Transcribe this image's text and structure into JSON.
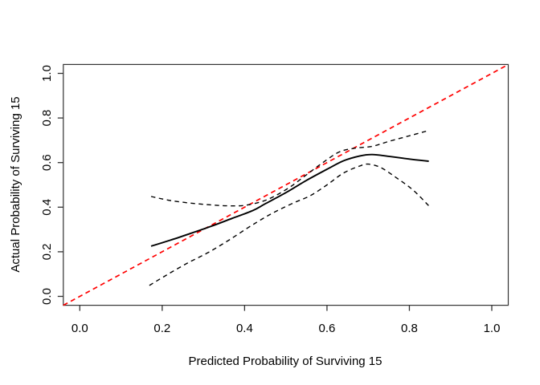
{
  "figure": {
    "background": "#ffffff",
    "frame_color": "#333333",
    "text_color": "#000000"
  },
  "chart_data": {
    "type": "line",
    "title": "",
    "xlabel": "Predicted Probability of Surviving 15",
    "ylabel": "Actual Probability of Surviving 15",
    "xlim": [
      -0.04,
      1.04
    ],
    "ylim": [
      -0.04,
      1.04
    ],
    "grid": false,
    "legend": "none",
    "x_ticks": [
      0,
      0.2,
      0.4,
      0.6,
      0.8,
      1
    ],
    "x_tick_labels": [
      "0.0",
      "0.2",
      "0.4",
      "0.6",
      "0.8",
      "1.0"
    ],
    "y_ticks": [
      0,
      0.2,
      0.4,
      0.6,
      0.8,
      1
    ],
    "y_tick_labels": [
      "0.0",
      "0.2",
      "0.4",
      "0.6",
      "0.8",
      "1.0"
    ],
    "series": [
      {
        "name": "ideal-line",
        "style": "dashed",
        "color": "#ff0000",
        "points": [
          [
            -0.04,
            -0.04
          ],
          [
            1.04,
            1.04
          ]
        ]
      },
      {
        "name": "calibration-curve",
        "style": "solid",
        "color": "#000000",
        "points": [
          [
            0.173,
            0.225
          ],
          [
            0.22,
            0.252
          ],
          [
            0.27,
            0.283
          ],
          [
            0.32,
            0.315
          ],
          [
            0.37,
            0.35
          ],
          [
            0.42,
            0.385
          ],
          [
            0.45,
            0.415
          ],
          [
            0.5,
            0.465
          ],
          [
            0.55,
            0.52
          ],
          [
            0.6,
            0.57
          ],
          [
            0.64,
            0.608
          ],
          [
            0.68,
            0.63
          ],
          [
            0.71,
            0.636
          ],
          [
            0.75,
            0.628
          ],
          [
            0.8,
            0.616
          ],
          [
            0.847,
            0.606
          ]
        ]
      },
      {
        "name": "upper-confidence-curve",
        "style": "dashed",
        "color": "#000000",
        "points": [
          [
            0.173,
            0.448
          ],
          [
            0.22,
            0.43
          ],
          [
            0.27,
            0.418
          ],
          [
            0.32,
            0.41
          ],
          [
            0.36,
            0.406
          ],
          [
            0.4,
            0.408
          ],
          [
            0.44,
            0.424
          ],
          [
            0.47,
            0.447
          ],
          [
            0.51,
            0.49
          ],
          [
            0.55,
            0.545
          ],
          [
            0.59,
            0.6
          ],
          [
            0.63,
            0.648
          ],
          [
            0.67,
            0.665
          ],
          [
            0.71,
            0.673
          ],
          [
            0.75,
            0.695
          ],
          [
            0.8,
            0.72
          ],
          [
            0.847,
            0.744
          ]
        ]
      },
      {
        "name": "lower-confidence-curve",
        "style": "dashed",
        "color": "#000000",
        "points": [
          [
            0.169,
            0.049
          ],
          [
            0.21,
            0.095
          ],
          [
            0.26,
            0.148
          ],
          [
            0.31,
            0.195
          ],
          [
            0.36,
            0.25
          ],
          [
            0.41,
            0.31
          ],
          [
            0.45,
            0.355
          ],
          [
            0.48,
            0.385
          ],
          [
            0.52,
            0.42
          ],
          [
            0.56,
            0.452
          ],
          [
            0.6,
            0.5
          ],
          [
            0.64,
            0.553
          ],
          [
            0.68,
            0.585
          ],
          [
            0.7,
            0.593
          ],
          [
            0.73,
            0.578
          ],
          [
            0.77,
            0.53
          ],
          [
            0.81,
            0.475
          ],
          [
            0.847,
            0.406
          ]
        ]
      }
    ]
  }
}
